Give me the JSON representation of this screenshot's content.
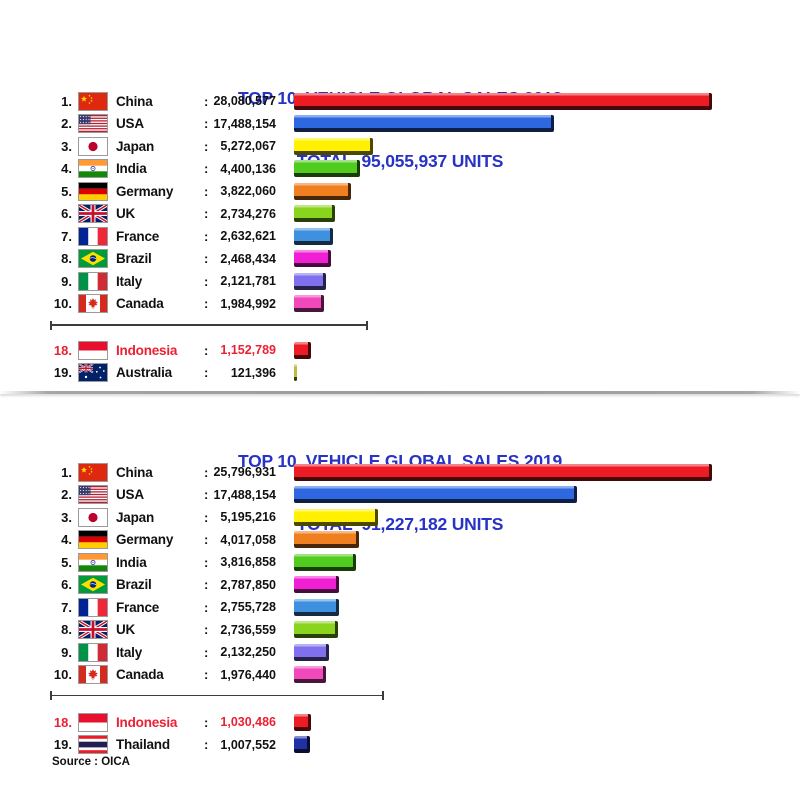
{
  "colors": {
    "title": "#2733C4",
    "highlight": "#EC2033",
    "text": "#111111",
    "axis": "#3C3C3C",
    "flag_border": "#9A9A9A"
  },
  "colon": ":",
  "source_label": "Source : OICA",
  "chart_data": [
    {
      "type": "bar",
      "orientation": "horizontal",
      "year": 2018,
      "title": "TOP 10  VEHICLE GLOBAL SALES 2018",
      "subtitle": "TOTAL  95,055,937 UNITS",
      "total_units": 95055937,
      "xlim": [
        0,
        28080577
      ],
      "grid": false,
      "legend": false,
      "rows": [
        {
          "rank": "1.",
          "country": "China",
          "flag": "cn",
          "value": 28080577,
          "label": "28,080,577",
          "color": "#ED1C24"
        },
        {
          "rank": "2.",
          "country": "USA",
          "flag": "us",
          "value": 17488154,
          "label": "17,488,154",
          "color": "#2E68E0"
        },
        {
          "rank": "3.",
          "country": "Japan",
          "flag": "jp",
          "value": 5272067,
          "label": "5,272,067",
          "color": "#FFF100"
        },
        {
          "rank": "4.",
          "country": "India",
          "flag": "in",
          "value": 4400136,
          "label": "4,400,136",
          "color": "#52CB1F"
        },
        {
          "rank": "5.",
          "country": "Germany",
          "flag": "de",
          "value": 3822060,
          "label": "3,822,060",
          "color": "#EF7F1F"
        },
        {
          "rank": "6.",
          "country": "UK",
          "flag": "gb",
          "value": 2734276,
          "label": "2,734,276",
          "color": "#8AD41E"
        },
        {
          "rank": "7.",
          "country": "France",
          "flag": "fr",
          "value": 2632621,
          "label": "2,632,621",
          "color": "#4090E0"
        },
        {
          "rank": "8.",
          "country": "Brazil",
          "flag": "br",
          "value": 2468434,
          "label": "2,468,434",
          "color": "#F11FD3"
        },
        {
          "rank": "9.",
          "country": "Italy",
          "flag": "it",
          "value": 2121781,
          "label": "2,121,781",
          "color": "#8070EE"
        },
        {
          "rank": "10.",
          "country": "Canada",
          "flag": "ca",
          "value": 1984992,
          "label": "1,984,992",
          "color": "#F148BC"
        },
        {
          "rank": "18.",
          "country": "Indonesia",
          "flag": "id",
          "value": 1152789,
          "label": "1,152,789",
          "color": "#ED1C24",
          "group": "extra",
          "highlight": true
        },
        {
          "rank": "19.",
          "country": "Australia",
          "flag": "au",
          "value": 121396,
          "label": "121,396",
          "color": "#B9BD44",
          "group": "extra"
        }
      ]
    },
    {
      "type": "bar",
      "orientation": "horizontal",
      "year": 2019,
      "title": "TOP 10  VEHICLE GLOBAL SALES 2019",
      "subtitle": "TOTAL  91,227,182 UNITS",
      "total_units": 91227182,
      "xlim": [
        0,
        25796931
      ],
      "grid": false,
      "legend": false,
      "rows": [
        {
          "rank": "1.",
          "country": "China",
          "flag": "cn",
          "value": 25796931,
          "label": "25,796,931",
          "color": "#ED1C24"
        },
        {
          "rank": "2.",
          "country": "USA",
          "flag": "us",
          "value": 17488154,
          "label": "17,488,154",
          "color": "#2E68E0"
        },
        {
          "rank": "3.",
          "country": "Japan",
          "flag": "jp",
          "value": 5195216,
          "label": "5,195,216",
          "color": "#FFF100"
        },
        {
          "rank": "4.",
          "country": "Germany",
          "flag": "de",
          "value": 4017058,
          "label": "4,017,058",
          "color": "#EF7F1F"
        },
        {
          "rank": "5.",
          "country": "India",
          "flag": "in",
          "value": 3816858,
          "label": "3,816,858",
          "color": "#52CB1F"
        },
        {
          "rank": "6.",
          "country": "Brazil",
          "flag": "br",
          "value": 2787850,
          "label": "2,787,850",
          "color": "#F11FD3"
        },
        {
          "rank": "7.",
          "country": "France",
          "flag": "fr",
          "value": 2755728,
          "label": "2,755,728",
          "color": "#4090E0"
        },
        {
          "rank": "8.",
          "country": "UK",
          "flag": "gb",
          "value": 2736559,
          "label": "2,736,559",
          "color": "#8AD41E"
        },
        {
          "rank": "9.",
          "country": "Italy",
          "flag": "it",
          "value": 2132250,
          "label": "2,132,250",
          "color": "#8070EE"
        },
        {
          "rank": "10.",
          "country": "Canada",
          "flag": "ca",
          "value": 1976440,
          "label": "1,976,440",
          "color": "#F148BC"
        },
        {
          "rank": "18.",
          "country": "Indonesia",
          "flag": "id",
          "value": 1030486,
          "label": "1,030,486",
          "color": "#ED1C24",
          "group": "extra",
          "highlight": true
        },
        {
          "rank": "19.",
          "country": "Thailand",
          "flag": "th",
          "value": 1007552,
          "label": "1,007,552",
          "color": "#2031A6",
          "group": "extra"
        }
      ]
    }
  ]
}
